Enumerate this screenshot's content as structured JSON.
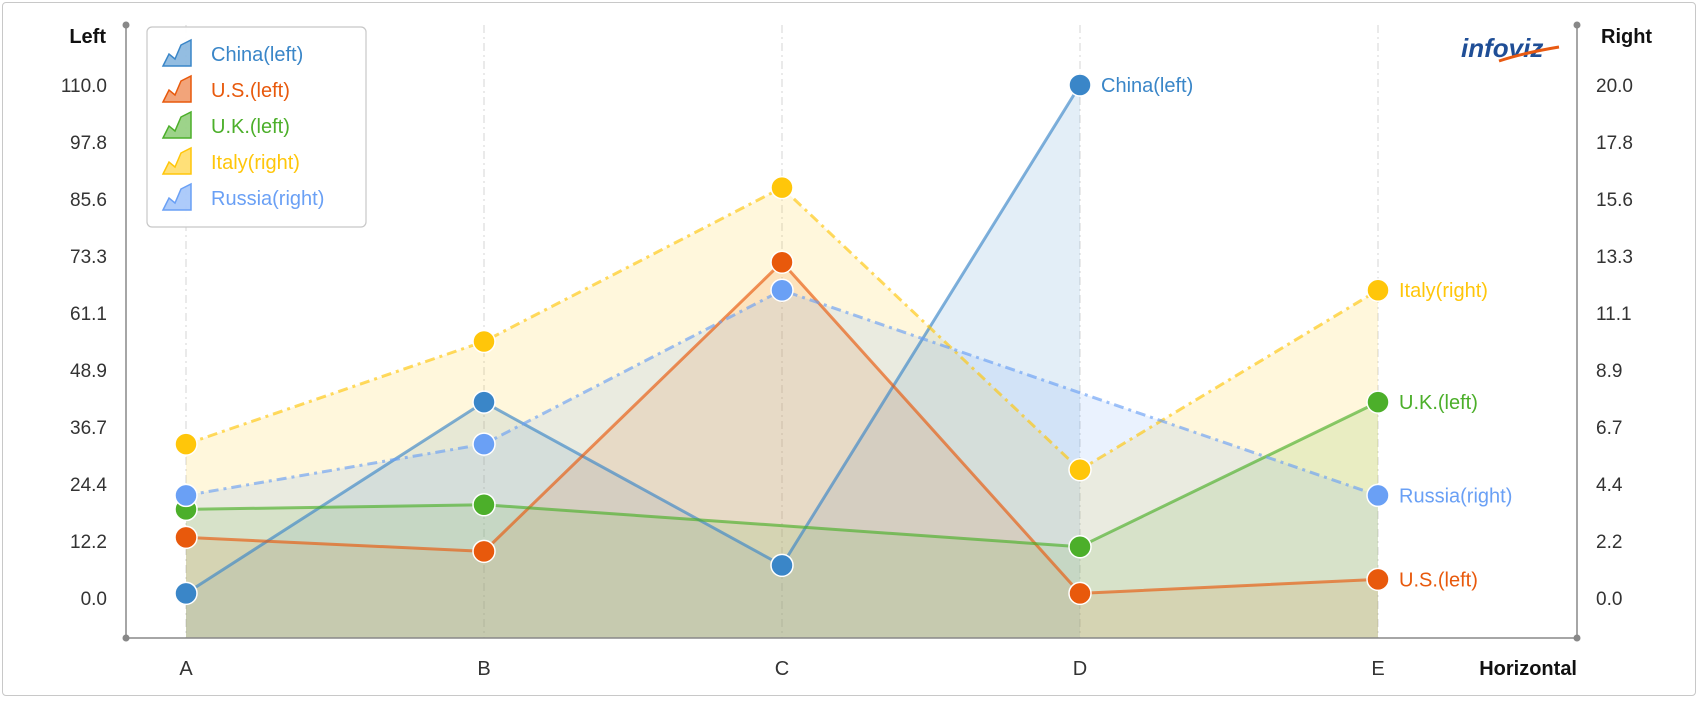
{
  "brand": {
    "logo_text": "infoviz"
  },
  "chart_data": {
    "type": "area",
    "categories": [
      "A",
      "B",
      "C",
      "D",
      "E"
    ],
    "xlabel": "Horizontal",
    "left_axis": {
      "label": "Left",
      "ticks": [
        "0.0",
        "12.2",
        "24.4",
        "36.7",
        "48.9",
        "61.1",
        "73.3",
        "85.6",
        "97.8",
        "110.0"
      ],
      "range": [
        0,
        110
      ]
    },
    "right_axis": {
      "label": "Right",
      "ticks": [
        "0.0",
        "2.2",
        "4.4",
        "6.7",
        "8.9",
        "11.1",
        "13.3",
        "15.6",
        "17.8",
        "20.0"
      ],
      "range": [
        0,
        20
      ]
    },
    "legend": {
      "position": "top-left"
    },
    "series": [
      {
        "name": "China(left)",
        "axis": "left",
        "color": "#3a86c8",
        "dash": "solid",
        "values": [
          1,
          42,
          7,
          110,
          null
        ]
      },
      {
        "name": "U.S.(left)",
        "axis": "left",
        "color": "#e8590c",
        "dash": "solid",
        "values": [
          13,
          10,
          72,
          1,
          4
        ]
      },
      {
        "name": "U.K.(left)",
        "axis": "left",
        "color": "#4caf2a",
        "dash": "solid",
        "values": [
          19,
          20,
          null,
          11,
          42
        ]
      },
      {
        "name": "Italy(right)",
        "axis": "right",
        "color": "#ffc60a",
        "dash": "dashdot",
        "values": [
          6,
          10,
          16,
          5,
          12
        ]
      },
      {
        "name": "Russia(right)",
        "axis": "right",
        "color": "#6aa0f5",
        "dash": "dashdot",
        "values": [
          4,
          6,
          12,
          null,
          4
        ]
      }
    ],
    "end_labels": [
      {
        "series": 0,
        "category": "D",
        "text": "China(left)"
      },
      {
        "series": 3,
        "category": "E",
        "text": "Italy(right)"
      },
      {
        "series": 2,
        "category": "E",
        "text": "U.K.(left)"
      },
      {
        "series": 4,
        "category": "E",
        "text": "Russia(right)"
      },
      {
        "series": 1,
        "category": "E",
        "text": "U.S.(left)"
      }
    ]
  }
}
